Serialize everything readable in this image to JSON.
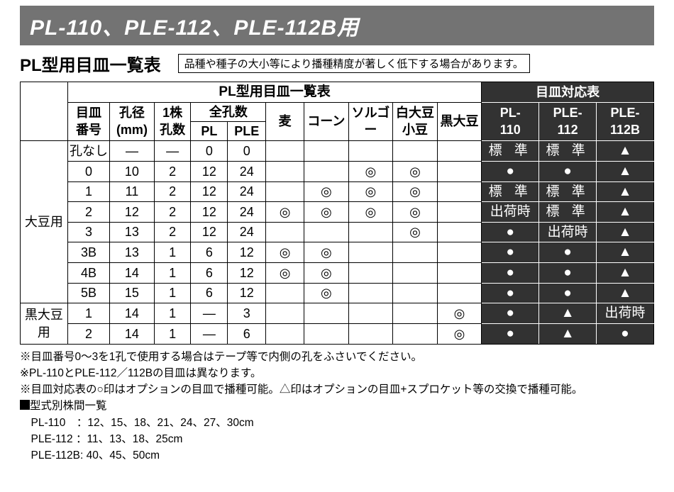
{
  "banner": "PL-110、PLE-112、PLE-112B用",
  "subhead": "PL型用目皿一覧表",
  "note_box": "品種や種子の大小等により播種精度が著しく低下する場合があります。",
  "head": {
    "main_left": "PL型用目皿一覧表",
    "main_right": "目皿対応表",
    "h1": "目皿\n番号",
    "h2": "孔径\n(mm)",
    "h3": "1株\n孔数",
    "h4": "全孔数",
    "h4a": "PL",
    "h4b": "PLE",
    "h5": "麦",
    "h6": "コーン",
    "h7": "ソルゴー",
    "h8": "白大豆\n小豆",
    "h9": "黒大豆",
    "r1": "PL-\n110",
    "r2": "PLE-\n112",
    "r3": "PLE-\n112B"
  },
  "cat1": "大豆用",
  "cat2": "黒大豆用",
  "s": {
    "std": "標 準",
    "ship": "出荷時",
    "circ": "●",
    "tri": "▲",
    "dbl": "◎",
    "dash": "―"
  },
  "rows": [
    {
      "no": "孔なし",
      "dia": "dash",
      "pk": "dash",
      "pl": "0",
      "ple": "0",
      "wh": "",
      "cn": "",
      "sg": "",
      "ws": "",
      "bs": "",
      "c1": "std",
      "c2": "std",
      "c3": "tri"
    },
    {
      "no": "0",
      "dia": "10",
      "pk": "2",
      "pl": "12",
      "ple": "24",
      "wh": "",
      "cn": "",
      "sg": "dbl",
      "ws": "dbl",
      "bs": "",
      "c1": "circ",
      "c2": "circ",
      "c3": "tri"
    },
    {
      "no": "1",
      "dia": "11",
      "pk": "2",
      "pl": "12",
      "ple": "24",
      "wh": "",
      "cn": "dbl",
      "sg": "dbl",
      "ws": "dbl",
      "bs": "",
      "c1": "std",
      "c2": "std",
      "c3": "tri"
    },
    {
      "no": "2",
      "dia": "12",
      "pk": "2",
      "pl": "12",
      "ple": "24",
      "wh": "dbl",
      "cn": "dbl",
      "sg": "dbl",
      "ws": "dbl",
      "bs": "",
      "c1": "ship",
      "c2": "std",
      "c3": "tri"
    },
    {
      "no": "3",
      "dia": "13",
      "pk": "2",
      "pl": "12",
      "ple": "24",
      "wh": "",
      "cn": "",
      "sg": "",
      "ws": "dbl",
      "bs": "",
      "c1": "circ",
      "c2": "ship",
      "c3": "tri"
    },
    {
      "no": "3B",
      "dia": "13",
      "pk": "1",
      "pl": "6",
      "ple": "12",
      "wh": "dbl",
      "cn": "dbl",
      "sg": "",
      "ws": "",
      "bs": "",
      "c1": "circ",
      "c2": "circ",
      "c3": "tri"
    },
    {
      "no": "4B",
      "dia": "14",
      "pk": "1",
      "pl": "6",
      "ple": "12",
      "wh": "dbl",
      "cn": "dbl",
      "sg": "",
      "ws": "",
      "bs": "",
      "c1": "circ",
      "c2": "circ",
      "c3": "tri"
    },
    {
      "no": "5B",
      "dia": "15",
      "pk": "1",
      "pl": "6",
      "ple": "12",
      "wh": "",
      "cn": "dbl",
      "sg": "",
      "ws": "",
      "bs": "",
      "c1": "circ",
      "c2": "circ",
      "c3": "tri"
    },
    {
      "no": "1",
      "dia": "14",
      "pk": "1",
      "pl": "dash",
      "ple": "3",
      "wh": "",
      "cn": "",
      "sg": "",
      "ws": "",
      "bs": "dbl",
      "c1": "circ",
      "c2": "tri",
      "c3": "ship"
    },
    {
      "no": "2",
      "dia": "14",
      "pk": "1",
      "pl": "dash",
      "ple": "6",
      "wh": "",
      "cn": "",
      "sg": "",
      "ws": "",
      "bs": "dbl",
      "c1": "circ",
      "c2": "tri",
      "c3": "circ"
    }
  ],
  "foot": {
    "l1": "※目皿番号0～3を1孔で使用する場合はテープ等で内側の孔をふさいでください。",
    "l2": "※PL-110とPLE-112／112Bの目皿は異なります。",
    "l3": "※目皿対応表の○印はオプションの目皿で播種可能。△印はオプションの目皿+スプロケット等の交換で播種可能。",
    "l4": "型式別株間一覧",
    "l5": "　PL-110　：12、15、18、21、24、27、30cm",
    "l6": "　PLE-112 ：11、13、18、25cm",
    "l7": "　PLE-112B: 40、45、50cm"
  }
}
